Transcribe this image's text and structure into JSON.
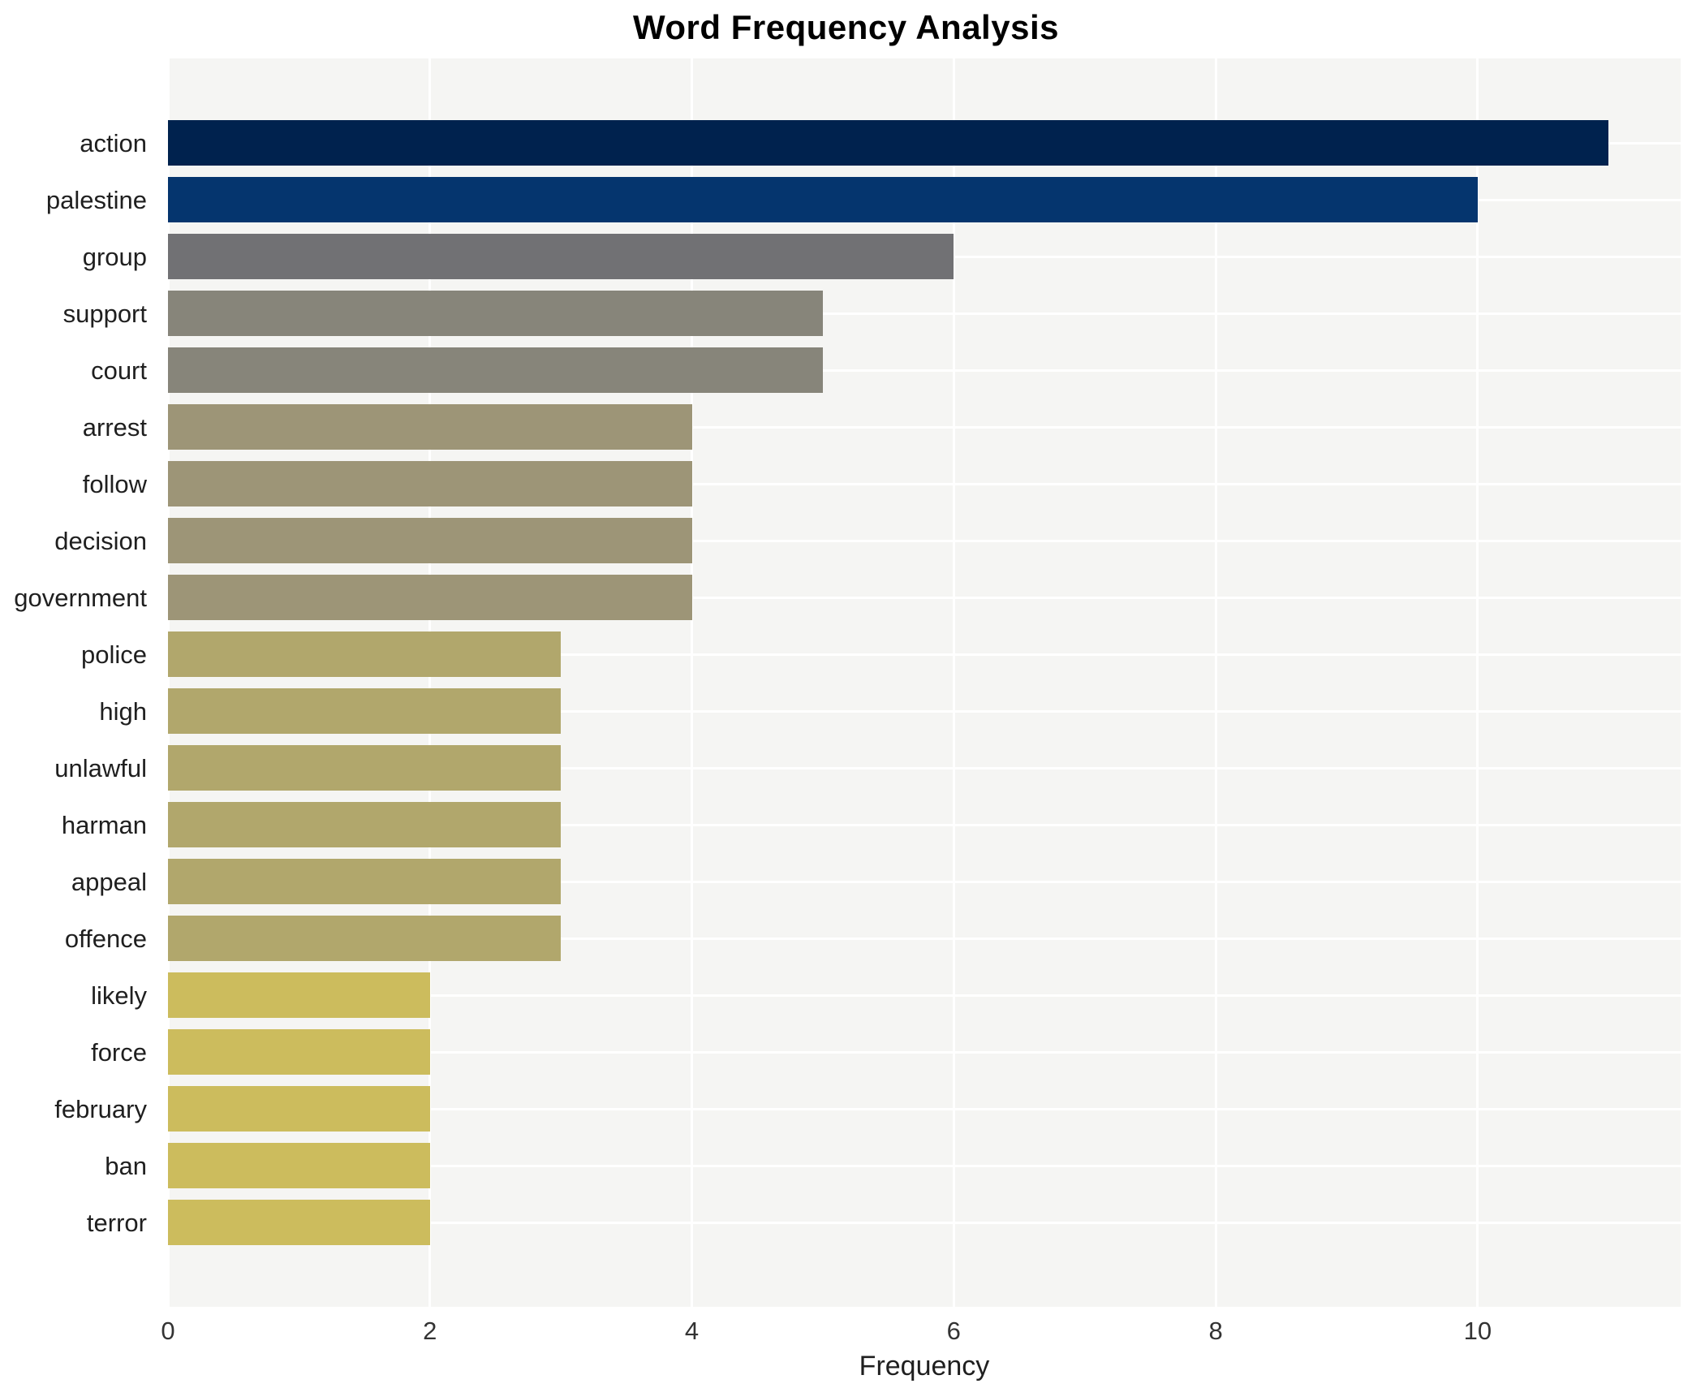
{
  "title": "Word Frequency Analysis",
  "axis": {
    "xlabel": "Frequency",
    "xticks": [
      "0",
      "2",
      "4",
      "6",
      "8",
      "10"
    ]
  },
  "colors": {
    "panel_background": "#f5f5f3",
    "gridline": "#ffffff",
    "title_text": "#000000",
    "label_text": "#1f1f1f",
    "tick_text": "#333333",
    "value_11": "#00224e",
    "value_10": "#05356e",
    "value_6": "#717174",
    "value_5": "#87857a",
    "value_4": "#9d9577",
    "value_3": "#b1a76c",
    "value_2": "#ccbc5d"
  },
  "chart_data": {
    "type": "bar",
    "orientation": "horizontal",
    "title": "Word Frequency Analysis",
    "xlabel": "Frequency",
    "ylabel": "",
    "categories": [
      "action",
      "palestine",
      "group",
      "support",
      "court",
      "arrest",
      "follow",
      "decision",
      "government",
      "police",
      "high",
      "unlawful",
      "harman",
      "appeal",
      "offence",
      "likely",
      "force",
      "february",
      "ban",
      "terror"
    ],
    "values": [
      11,
      10,
      6,
      5,
      5,
      4,
      4,
      4,
      4,
      3,
      3,
      3,
      3,
      3,
      3,
      2,
      2,
      2,
      2,
      2
    ],
    "bar_colors": [
      "#00224e",
      "#05356e",
      "#717174",
      "#87857a",
      "#87857a",
      "#9d9577",
      "#9d9577",
      "#9d9577",
      "#9d9577",
      "#b1a76c",
      "#b1a76c",
      "#b1a76c",
      "#b1a76c",
      "#b1a76c",
      "#b1a76c",
      "#ccbc5d",
      "#ccbc5d",
      "#ccbc5d",
      "#ccbc5d",
      "#ccbc5d"
    ],
    "xlim": [
      0,
      11.55
    ],
    "xticks": [
      0,
      2,
      4,
      6,
      8,
      10
    ],
    "grid": "white vertical gridlines at x ticks and horizontal gridlines at category centers over light-gray panel",
    "legend": "none"
  }
}
